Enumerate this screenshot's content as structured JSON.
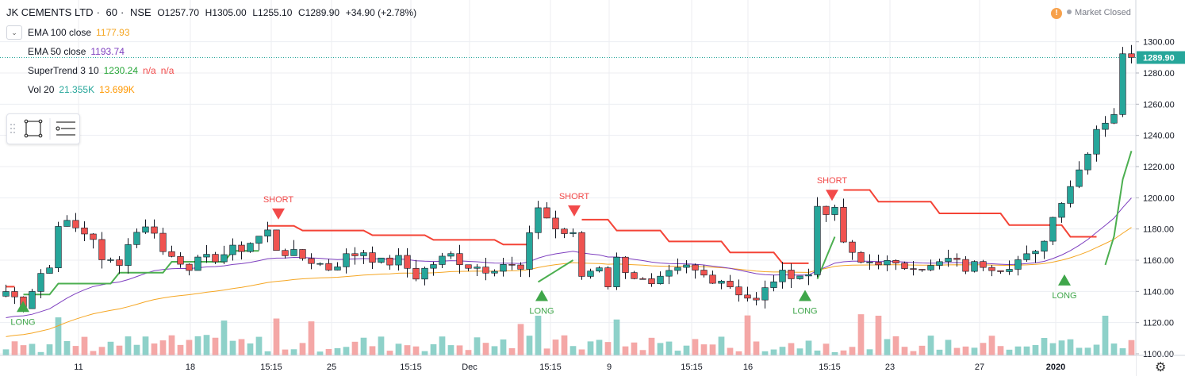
{
  "header": {
    "symbol": "JK CEMENTS LTD",
    "interval": "60",
    "exchange": "NSE",
    "sep": "·",
    "open": "O1257.70",
    "high": "H1305.00",
    "low": "L1255.10",
    "close": "C1289.90",
    "change": "+34.90 (+2.78%)"
  },
  "indicators": [
    {
      "name": "EMA 100 close",
      "values": [
        "1177.93"
      ],
      "colors": [
        "#f5a623"
      ]
    },
    {
      "name": "EMA 50 close",
      "values": [
        "1193.74"
      ],
      "colors": [
        "#7e3fbf"
      ]
    },
    {
      "name": "SuperTrend 3 10",
      "values": [
        "1230.24",
        "n/a",
        "n/a"
      ],
      "colors": [
        "#26a637",
        "#f24a4a",
        "#f24a4a"
      ]
    },
    {
      "name": "Vol 20",
      "values": [
        "21.355K",
        "13.699K"
      ],
      "colors": [
        "#26a69a",
        "#ff9800"
      ]
    }
  ],
  "status": {
    "warning_glyph": "!",
    "market": "Market Closed"
  },
  "colors": {
    "up": "#26a69a",
    "down": "#ef5350",
    "wick": "#131722",
    "ema100": "#f5a623",
    "ema50": "#7e3fbf",
    "st_up": "#4caf50",
    "st_down": "#f44336",
    "vol_up": "#8ed1c9",
    "vol_down": "#f4a7a6",
    "grid": "#eceef2",
    "text": "#131722",
    "signal_long": "#3fa64a",
    "signal_short": "#f24a4a"
  },
  "chart_data": {
    "type": "candlestick",
    "y_axis": {
      "ticks": [
        1100,
        1120,
        1140,
        1160,
        1180,
        1200,
        1220,
        1240,
        1260,
        1280,
        1300
      ],
      "range": [
        1100,
        1310
      ],
      "last_price_label": "1289.90"
    },
    "x_axis": {
      "ticks": [
        "11",
        "18",
        "15:15",
        "25",
        "15:15",
        "Dec",
        "15:15",
        "9",
        "15:15",
        "16",
        "15:15",
        "23",
        "27",
        "2020"
      ]
    },
    "signals": [
      {
        "type": "LONG",
        "label": "LONG",
        "price": 1138
      },
      {
        "type": "SHORT",
        "label": "SHORT",
        "price": 1184
      },
      {
        "type": "LONG",
        "label": "LONG",
        "price": 1145
      },
      {
        "type": "SHORT",
        "label": "SHORT",
        "price": 1186
      },
      {
        "type": "LONG",
        "label": "LONG",
        "price": 1145
      },
      {
        "type": "SHORT",
        "label": "SHORT",
        "price": 1196
      },
      {
        "type": "LONG",
        "label": "LONG",
        "price": 1155
      }
    ],
    "candle_close_path": [
      [
        0,
        1140
      ],
      [
        2,
        1132
      ],
      [
        4,
        1152
      ],
      [
        5,
        1155
      ],
      [
        6,
        1185
      ],
      [
        8,
        1180
      ],
      [
        10,
        1175
      ],
      [
        11,
        1158
      ],
      [
        13,
        1160
      ],
      [
        15,
        1180
      ],
      [
        17,
        1180
      ],
      [
        18,
        1165
      ],
      [
        20,
        1160
      ],
      [
        21,
        1157
      ],
      [
        23,
        1160
      ],
      [
        25,
        1164
      ],
      [
        27,
        1168
      ],
      [
        29,
        1175
      ],
      [
        30,
        1178
      ],
      [
        31,
        1168
      ],
      [
        33,
        1163
      ],
      [
        35,
        1160
      ],
      [
        37,
        1155
      ],
      [
        39,
        1162
      ],
      [
        41,
        1166
      ],
      [
        43,
        1158
      ],
      [
        45,
        1160
      ],
      [
        47,
        1150
      ],
      [
        49,
        1158
      ],
      [
        51,
        1163
      ],
      [
        53,
        1157
      ],
      [
        55,
        1155
      ],
      [
        57,
        1158
      ],
      [
        59,
        1153
      ],
      [
        61,
        1195
      ],
      [
        63,
        1180
      ],
      [
        65,
        1175
      ],
      [
        66,
        1150
      ],
      [
        68,
        1157
      ],
      [
        69,
        1145
      ],
      [
        70,
        1160
      ],
      [
        72,
        1150
      ],
      [
        74,
        1142
      ],
      [
        76,
        1150
      ],
      [
        78,
        1155
      ],
      [
        80,
        1150
      ],
      [
        82,
        1148
      ],
      [
        84,
        1140
      ],
      [
        86,
        1133
      ],
      [
        88,
        1148
      ],
      [
        90,
        1152
      ],
      [
        92,
        1150
      ],
      [
        93,
        1195
      ],
      [
        95,
        1190
      ],
      [
        96,
        1172
      ],
      [
        97,
        1162
      ],
      [
        98,
        1158
      ],
      [
        100,
        1160
      ],
      [
        102,
        1155
      ],
      [
        104,
        1158
      ],
      [
        106,
        1155
      ],
      [
        108,
        1160
      ],
      [
        110,
        1155
      ],
      [
        112,
        1158
      ],
      [
        114,
        1156
      ],
      [
        116,
        1160
      ],
      [
        118,
        1163
      ],
      [
        119,
        1175
      ],
      [
        121,
        1200
      ],
      [
        123,
        1218
      ],
      [
        125,
        1245
      ],
      [
        127,
        1255
      ],
      [
        128,
        1290
      ]
    ],
    "supertrend_levels": [
      1142,
      1138,
      1180,
      1188,
      1170,
      1146,
      1186,
      1160,
      1148,
      1185,
      1175,
      1160,
      1230
    ],
    "ema50_levels": [
      1122,
      1193.74
    ],
    "ema100_levels": [
      1110,
      1177.93
    ],
    "volume_legend": [
      "21.355K",
      "13.699K"
    ]
  }
}
